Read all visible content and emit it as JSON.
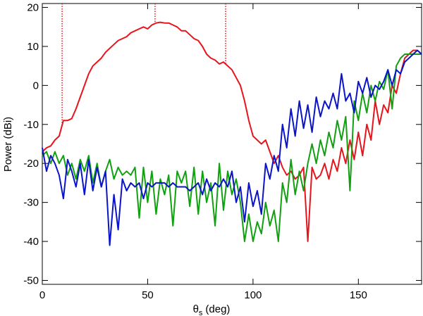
{
  "chart_data": {
    "type": "line",
    "xlabel": {
      "symbol": "θ",
      "subscript": "s",
      "unit": "(deg)"
    },
    "ylabel": "Power (dBi)",
    "xlim": [
      0,
      180
    ],
    "ylim": [
      -51,
      21
    ],
    "xticks": [
      0,
      50,
      100,
      150
    ],
    "yticks": [
      -50,
      -40,
      -30,
      -20,
      -10,
      0,
      10,
      20
    ],
    "markers": {
      "x": [
        9.4,
        53.5,
        87
      ],
      "color": "#e8141c"
    },
    "x": [
      0,
      2,
      4,
      6,
      8,
      10,
      12,
      14,
      16,
      18,
      20,
      22,
      24,
      26,
      28,
      30,
      32,
      34,
      36,
      38,
      40,
      42,
      44,
      46,
      48,
      50,
      52,
      54,
      56,
      58,
      60,
      62,
      64,
      66,
      68,
      70,
      72,
      74,
      76,
      78,
      80,
      82,
      84,
      86,
      88,
      90,
      92,
      94,
      96,
      98,
      100,
      102,
      104,
      106,
      108,
      110,
      112,
      114,
      116,
      118,
      120,
      122,
      124,
      126,
      128,
      130,
      132,
      134,
      136,
      138,
      140,
      142,
      144,
      146,
      148,
      150,
      152,
      154,
      156,
      158,
      160,
      162,
      164,
      166,
      168,
      170,
      172,
      174,
      176,
      178,
      180
    ],
    "series": [
      {
        "color": "#e8141c",
        "values": [
          -17,
          -16,
          -15.5,
          -14,
          -13,
          -9,
          -9,
          -8.5,
          -6,
          -3,
          0,
          3,
          5,
          6,
          7,
          8.5,
          9.5,
          10.5,
          11.5,
          12,
          12.5,
          13.5,
          14,
          14.5,
          15,
          14.5,
          15.5,
          16,
          16.2,
          16,
          16,
          15.5,
          15,
          14,
          14,
          13,
          12,
          11.5,
          10,
          8,
          7,
          6.5,
          5.5,
          6,
          5,
          4,
          2,
          0,
          -4,
          -9,
          -13,
          -14,
          -15,
          -14,
          -17,
          -20,
          -18,
          -21,
          -23,
          -22,
          -24,
          -23,
          -21,
          -40,
          -21,
          -24,
          -23,
          -20,
          -24,
          -19,
          -22,
          -16,
          -20,
          -14,
          -19,
          -12,
          -18,
          -10,
          -14,
          -4,
          -10,
          -5,
          -7,
          0,
          -2,
          3,
          7,
          8,
          9,
          9,
          8
        ]
      },
      {
        "color": "#10a010",
        "values": [
          -18,
          -17,
          -20,
          -17,
          -20,
          -18,
          -23,
          -20,
          -24,
          -19,
          -22,
          -18,
          -25,
          -20,
          -26,
          -22,
          -19,
          -24,
          -21,
          -23,
          -22,
          -23,
          -21,
          -34,
          -21,
          -30,
          -22,
          -33,
          -24,
          -28,
          -23,
          -36,
          -22,
          -25,
          -22,
          -31,
          -21,
          -33,
          -22,
          -30,
          -25,
          -36,
          -20,
          -32,
          -22,
          -28,
          -24,
          -30,
          -40,
          -33,
          -40,
          -35,
          -38,
          -30,
          -36,
          -32,
          -40,
          -25,
          -30,
          -19,
          -28,
          -22,
          -27,
          -20,
          -15,
          -20,
          -14,
          -18,
          -12,
          -16,
          -9,
          -14,
          -8,
          -27,
          -4,
          -9,
          -2,
          -7,
          0,
          -4,
          1,
          -1,
          4,
          -6,
          5,
          7,
          8,
          8,
          8,
          8,
          8
        ]
      },
      {
        "color": "#0a14c8",
        "values": [
          -16,
          -22,
          -18,
          -20,
          -23,
          -29,
          -19,
          -22,
          -26,
          -20,
          -28,
          -19,
          -27,
          -21,
          -26,
          -22,
          -41,
          -28,
          -37,
          -24,
          -27,
          -25,
          -26,
          -25,
          -29,
          -25,
          -26,
          -25,
          -25,
          -25,
          -26,
          -25,
          -26,
          -26,
          -26,
          -27,
          -26,
          -25,
          -28,
          -24,
          -27,
          -25,
          -26,
          -24,
          -26,
          -22,
          -30,
          -26,
          -35,
          -25,
          -31,
          -27,
          -33,
          -20,
          -24,
          -18,
          -22,
          -10,
          -16,
          -6,
          -13,
          -4,
          -11,
          -5,
          -12,
          -3,
          -8,
          -4,
          -6,
          -2,
          -6,
          3,
          -4,
          -2,
          -7,
          1,
          -2,
          2,
          -3,
          0,
          -1,
          1,
          4,
          0,
          4,
          3,
          6,
          7,
          8,
          9,
          8
        ]
      }
    ]
  }
}
